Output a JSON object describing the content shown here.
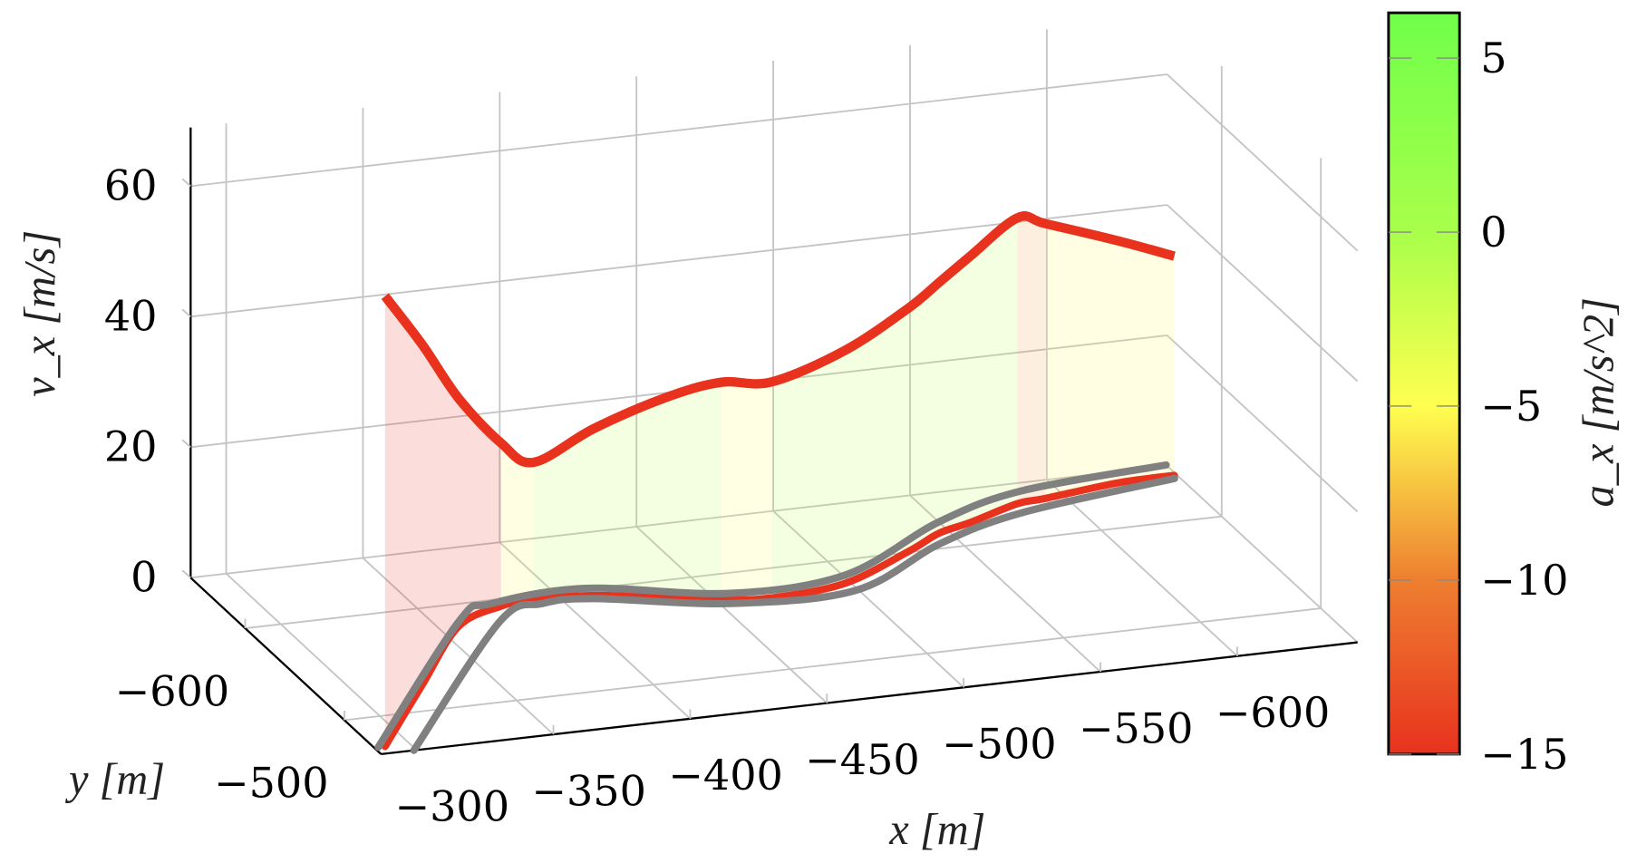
{
  "chart_data": {
    "type": "line",
    "projection": "3d",
    "xlabel": "x [m]",
    "ylabel": "y [m]",
    "zlabel": "v_x [m/s]",
    "colorbar_label": "a_x [m/s^2]",
    "xlim": [
      -644,
      -287
    ],
    "ylim": [
      -655,
      -463
    ],
    "zlim": [
      0,
      69
    ],
    "x_ticks": [
      -300,
      -350,
      -400,
      -450,
      -500,
      -550,
      -600
    ],
    "x_tick_labels": [
      "−300",
      "−350",
      "−400",
      "−450",
      "−500",
      "−550",
      "−600"
    ],
    "y_ticks": [
      -600,
      -500
    ],
    "y_tick_labels": [
      "−600",
      "−500"
    ],
    "z_ticks": [
      0,
      20,
      40,
      60
    ],
    "z_tick_labels": [
      "0",
      "20",
      "40",
      "60"
    ],
    "colorbar": {
      "range": [
        -15,
        6.3
      ],
      "ticks": [
        5,
        0,
        -5,
        -10,
        -15
      ],
      "tick_labels": [
        "5",
        "0",
        "−5",
        "−10",
        "−15"
      ],
      "colormap": [
        {
          "value": -15,
          "color": "#e8321e"
        },
        {
          "value": -10,
          "color": "#ee7f30"
        },
        {
          "value": -5,
          "color": "#ffff50"
        },
        {
          "value": 0,
          "color": "#a8ff4a"
        },
        {
          "value": 6.3,
          "color": "#70ff4a"
        }
      ]
    },
    "grid": true,
    "trajectory": {
      "columns": [
        "x",
        "y",
        "v_x",
        "a_x"
      ],
      "points": [
        [
          -291,
          -470,
          69,
          -15
        ],
        [
          -325,
          -526,
          52,
          -15
        ],
        [
          -357,
          -578,
          35,
          -15
        ],
        [
          -378,
          -593,
          25,
          -5.5
        ],
        [
          -391,
          -596,
          21,
          -1
        ],
        [
          -412,
          -593,
          25.6,
          -1
        ],
        [
          -435,
          -583,
          30.7,
          -1
        ],
        [
          -452,
          -575,
          33.3,
          -5
        ],
        [
          -469,
          -571,
          33.1,
          -1
        ],
        [
          -498,
          -577,
          35.7,
          -1
        ],
        [
          -530,
          -601,
          37.3,
          -1
        ],
        [
          -546,
          -615,
          38.4,
          -1
        ],
        [
          -560,
          -622,
          40.8,
          -1
        ],
        [
          -582,
          -635,
          43.8,
          -9
        ],
        [
          -593,
          -637,
          42.1,
          -5.5
        ],
        [
          -622,
          -644,
          37.1,
          -5.5
        ],
        [
          -643,
          -645,
          33.6,
          -5.5
        ]
      ],
      "color": "#e8321e"
    },
    "road_boundaries": {
      "color": "#808080",
      "left": [
        [
          -288.5,
          -470
        ],
        [
          -359,
          -583
        ],
        [
          -375.5,
          -596.5
        ],
        [
          -411.6,
          -601
        ],
        [
          -457,
          -580
        ],
        [
          -501,
          -585
        ],
        [
          -550,
          -626
        ],
        [
          -588,
          -647
        ],
        [
          -644,
          -656
        ]
      ],
      "right": [
        [
          -299,
          -463
        ],
        [
          -372,
          -578
        ],
        [
          -392.5,
          -591
        ],
        [
          -411,
          -590
        ],
        [
          -454,
          -570
        ],
        [
          -499,
          -569
        ],
        [
          -543,
          -605
        ],
        [
          -581,
          -626
        ],
        [
          -642,
          -642
        ]
      ]
    }
  }
}
